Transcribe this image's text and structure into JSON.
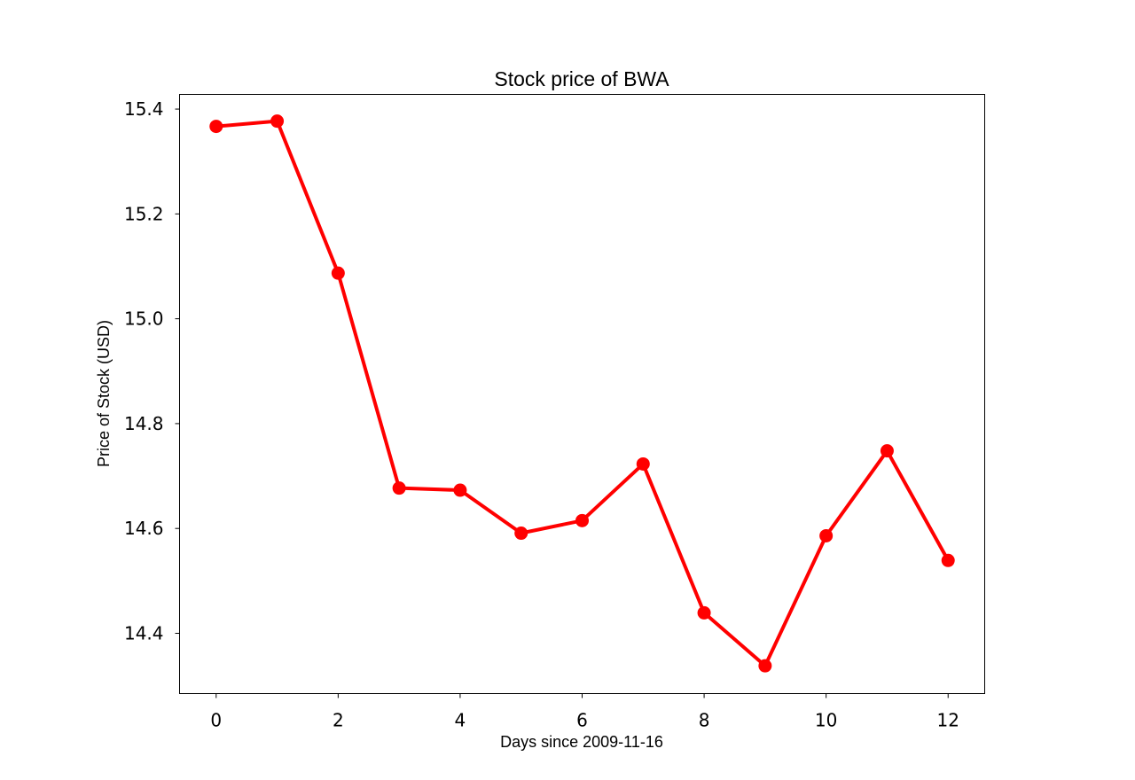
{
  "chart_data": {
    "type": "line",
    "title": "Stock price of BWA",
    "xlabel": "Days since 2009-11-16",
    "ylabel": "Price of Stock (USD)",
    "xlim": [
      -0.6,
      12.6
    ],
    "ylim": [
      14.285,
      15.428
    ],
    "xticks": [
      0,
      2,
      4,
      6,
      8,
      10,
      12
    ],
    "yticks": [
      14.4,
      14.6,
      14.8,
      15.0,
      15.2,
      15.4
    ],
    "ytick_labels": [
      "14.4",
      "14.6",
      "14.8",
      "15.0",
      "15.2",
      "15.4"
    ],
    "grid": false,
    "color": "#ff0000",
    "series": [
      {
        "x": [
          0,
          1,
          2,
          3,
          4,
          5,
          6,
          7,
          8,
          9,
          10,
          11,
          12
        ],
        "values": [
          15.367,
          15.377,
          15.087,
          14.677,
          14.673,
          14.591,
          14.615,
          14.723,
          14.439,
          14.338,
          14.586,
          14.748,
          14.539
        ]
      }
    ]
  }
}
